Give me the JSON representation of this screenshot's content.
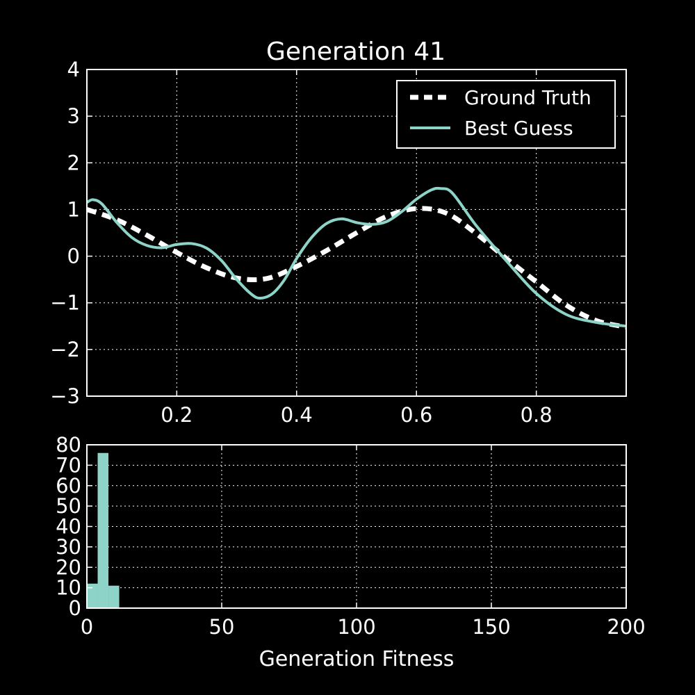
{
  "colors": {
    "background": "#000000",
    "axes": "#ffffff",
    "ground_truth": "#ffffff",
    "best_guess": "#8dd3c7",
    "histogram": "#8dd3c7"
  },
  "chart_data": [
    {
      "type": "line",
      "title": "Generation 41",
      "xlabel": "",
      "ylabel": "",
      "xlim": [
        0.05,
        0.95
      ],
      "ylim": [
        -3,
        4
      ],
      "x_ticks": [
        0.2,
        0.4,
        0.6,
        0.8
      ],
      "x_tick_labels": [
        "0.2",
        "0.4",
        "0.6",
        "0.8"
      ],
      "y_ticks": [
        -3,
        -2,
        -1,
        0,
        1,
        2,
        3,
        4
      ],
      "y_tick_labels": [
        "−3",
        "−2",
        "−1",
        "0",
        "1",
        "2",
        "3",
        "4"
      ],
      "grid": true,
      "legend_position": "top-right",
      "series": [
        {
          "name": "Ground Truth",
          "style": "dashed",
          "x": [
            0.05,
            0.1,
            0.15,
            0.2,
            0.25,
            0.3,
            0.35,
            0.4,
            0.45,
            0.5,
            0.55,
            0.6,
            0.65,
            0.7,
            0.75,
            0.8,
            0.85,
            0.9,
            0.95
          ],
          "y": [
            1.0,
            0.78,
            0.45,
            0.08,
            -0.25,
            -0.47,
            -0.48,
            -0.22,
            0.12,
            0.5,
            0.85,
            1.02,
            0.92,
            0.48,
            -0.05,
            -0.55,
            -1.05,
            -1.38,
            -1.52
          ]
        },
        {
          "name": "Best Guess",
          "style": "solid",
          "x": [
            0.05,
            0.06,
            0.075,
            0.1,
            0.125,
            0.15,
            0.175,
            0.2,
            0.225,
            0.25,
            0.275,
            0.3,
            0.325,
            0.34,
            0.36,
            0.38,
            0.4,
            0.425,
            0.45,
            0.475,
            0.5,
            0.525,
            0.55,
            0.575,
            0.6,
            0.625,
            0.64,
            0.66,
            0.7,
            0.75,
            0.8,
            0.85,
            0.9,
            0.95
          ],
          "y": [
            1.15,
            1.21,
            1.12,
            0.72,
            0.4,
            0.23,
            0.18,
            0.25,
            0.27,
            0.17,
            -0.1,
            -0.5,
            -0.82,
            -0.9,
            -0.8,
            -0.5,
            -0.05,
            0.4,
            0.7,
            0.8,
            0.72,
            0.68,
            0.74,
            0.95,
            1.22,
            1.42,
            1.45,
            1.35,
            0.65,
            -0.1,
            -0.8,
            -1.25,
            -1.42,
            -1.5
          ]
        }
      ]
    },
    {
      "type": "bar",
      "title": "",
      "xlabel": "Generation Fitness",
      "ylabel": "",
      "xlim": [
        0,
        200
      ],
      "ylim": [
        0,
        80
      ],
      "x_ticks": [
        0,
        50,
        100,
        150,
        200
      ],
      "x_tick_labels": [
        "0",
        "50",
        "100",
        "150",
        "200"
      ],
      "y_ticks": [
        0,
        10,
        20,
        30,
        40,
        50,
        60,
        70,
        80
      ],
      "y_tick_labels": [
        "0",
        "10",
        "20",
        "30",
        "40",
        "50",
        "60",
        "70",
        "80"
      ],
      "grid": true,
      "bins": [
        {
          "x0": 0,
          "x1": 4,
          "count": 12
        },
        {
          "x0": 4,
          "x1": 8,
          "count": 76
        },
        {
          "x0": 8,
          "x1": 12,
          "count": 11
        }
      ]
    }
  ]
}
